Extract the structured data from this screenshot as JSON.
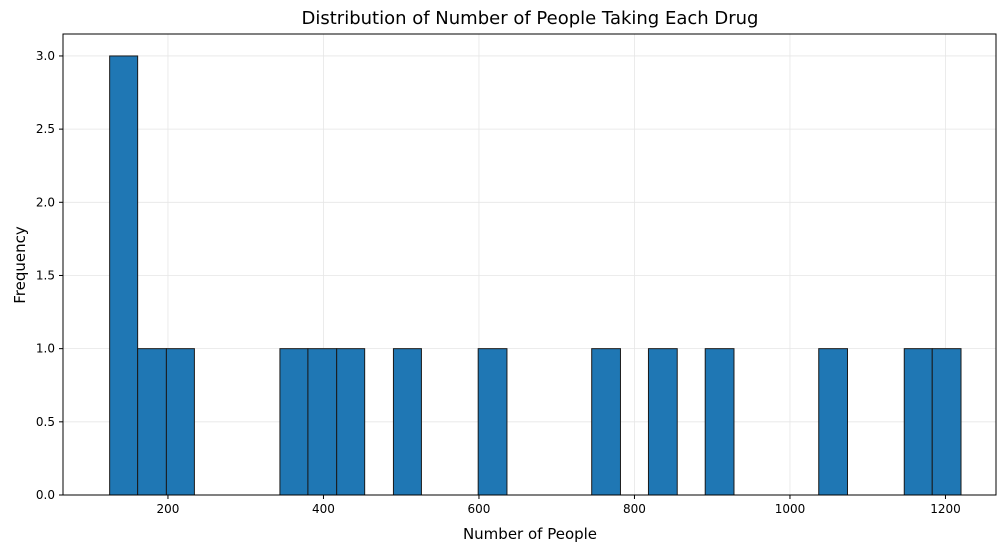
{
  "chart_data": {
    "type": "bar",
    "title": "Distribution of Number of People Taking Each Drug",
    "xlabel": "Number of People",
    "ylabel": "Frequency",
    "xlim": [
      65,
      1265
    ],
    "ylim": [
      0,
      3.15
    ],
    "x_ticks": [
      200,
      400,
      600,
      800,
      1000,
      1200
    ],
    "y_ticks": [
      0.0,
      0.5,
      1.0,
      1.5,
      2.0,
      2.5,
      3.0
    ],
    "x_tick_labels": [
      "200",
      "400",
      "600",
      "800",
      "1000",
      "1200"
    ],
    "y_tick_labels": [
      "0.0",
      "0.5",
      "1.0",
      "1.5",
      "2.0",
      "2.5",
      "3.0"
    ],
    "grid": true,
    "bar_color": "#1f77b4",
    "edge_color": "#1a1a1a",
    "bins": [
      {
        "start": 125,
        "end": 161,
        "count": 3
      },
      {
        "start": 161,
        "end": 198,
        "count": 1
      },
      {
        "start": 198,
        "end": 234,
        "count": 1
      },
      {
        "start": 344,
        "end": 380,
        "count": 1
      },
      {
        "start": 380,
        "end": 417,
        "count": 1
      },
      {
        "start": 417,
        "end": 453,
        "count": 1
      },
      {
        "start": 490,
        "end": 526,
        "count": 1
      },
      {
        "start": 599,
        "end": 636,
        "count": 1
      },
      {
        "start": 745,
        "end": 782,
        "count": 1
      },
      {
        "start": 818,
        "end": 855,
        "count": 1
      },
      {
        "start": 891,
        "end": 928,
        "count": 1
      },
      {
        "start": 1037,
        "end": 1074,
        "count": 1
      },
      {
        "start": 1147,
        "end": 1183,
        "count": 1
      },
      {
        "start": 1183,
        "end": 1220,
        "count": 1
      }
    ]
  }
}
